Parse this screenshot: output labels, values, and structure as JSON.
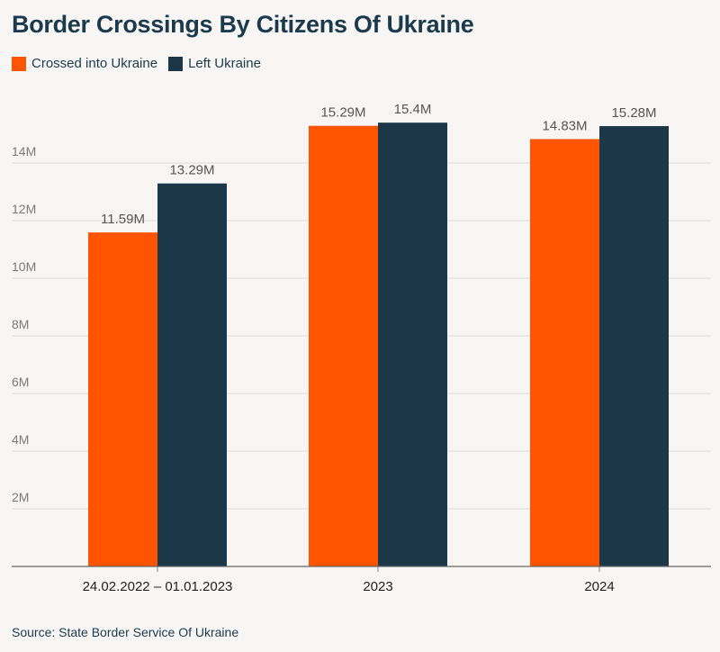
{
  "title": "Border Crossings By Citizens Of Ukraine",
  "source": "Source: State Border Service Of Ukraine",
  "legend": [
    {
      "label": "Crossed into Ukraine",
      "color": "#ff5500"
    },
    {
      "label": "Left Ukraine",
      "color": "#1c3748"
    }
  ],
  "chart_data": {
    "type": "bar",
    "categories": [
      "24.02.2022 – 01.01.2023",
      "2023",
      "2024"
    ],
    "series": [
      {
        "name": "Crossed into Ukraine",
        "values": [
          11.59,
          15.29,
          14.83
        ],
        "labels": [
          "11.59M",
          "15.29M",
          "14.83M"
        ],
        "color": "#ff5500"
      },
      {
        "name": "Left Ukraine",
        "values": [
          13.29,
          15.4,
          15.28
        ],
        "labels": [
          "13.29M",
          "15.4M",
          "15.28M"
        ],
        "color": "#1c3748"
      }
    ],
    "yticks": [
      2,
      4,
      6,
      8,
      10,
      12,
      14
    ],
    "ytick_labels": [
      "2M",
      "4M",
      "6M",
      "8M",
      "10M",
      "12M",
      "14M"
    ],
    "ylim": [
      0,
      16
    ],
    "grid": true,
    "legend_position": "top-left"
  }
}
